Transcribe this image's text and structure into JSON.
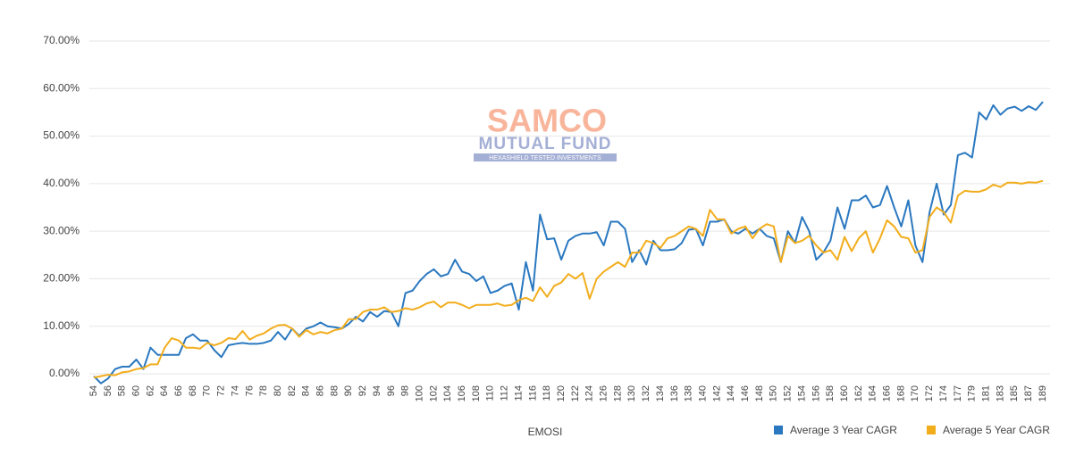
{
  "chart_data": {
    "type": "line",
    "watermark": {
      "brand": "SAMCO",
      "subtitle": "MUTUAL FUND",
      "tagline": "HEXASHIELD TESTED INVESTMENTS"
    },
    "x_label": "EMOSI",
    "categories": [
      "54",
      null,
      "56",
      null,
      "58",
      null,
      "60",
      null,
      "62",
      null,
      "64",
      null,
      "66",
      null,
      "68",
      null,
      "70",
      null,
      "72",
      null,
      "74",
      null,
      "76",
      null,
      "78",
      null,
      "80",
      null,
      "82",
      null,
      "84",
      null,
      "86",
      null,
      "88",
      null,
      "90",
      null,
      "92",
      null,
      "94",
      null,
      "96",
      null,
      "98",
      null,
      "100",
      null,
      "102",
      null,
      "104",
      null,
      "106",
      null,
      "108",
      null,
      "110",
      null,
      "112",
      null,
      "114",
      null,
      "116",
      null,
      "118",
      null,
      "120",
      null,
      "122",
      null,
      "124",
      null,
      "126",
      null,
      "128",
      null,
      "130",
      null,
      "132",
      null,
      "134",
      null,
      "136",
      null,
      "138",
      null,
      "140",
      null,
      "142",
      null,
      "144",
      null,
      "146",
      null,
      "148",
      null,
      "150",
      null,
      "152",
      null,
      "154",
      null,
      "156",
      null,
      "158",
      null,
      "160",
      null,
      "162",
      null,
      "164",
      null,
      "166",
      null,
      "168",
      null,
      "170",
      null,
      "172",
      null,
      "174",
      null,
      "177",
      null,
      "179",
      null,
      "181",
      null,
      "183",
      null,
      "185",
      null,
      "187",
      null,
      "189"
    ],
    "series": [
      {
        "name": "Average 3 Year CAGR",
        "color": "#2a78c0",
        "values": [
          -0.5,
          -2,
          -1,
          1,
          1.5,
          1.5,
          3,
          1,
          5.5,
          4,
          4,
          4,
          4,
          7.5,
          8.3,
          7,
          7,
          5,
          3.5,
          6,
          6.3,
          6.5,
          6.3,
          6.3,
          6.5,
          7,
          8.8,
          7.2,
          9.5,
          8,
          9.5,
          10,
          10.8,
          10,
          9.8,
          9.5,
          10.5,
          12,
          11,
          13,
          12,
          13.2,
          13,
          10,
          17,
          17.5,
          19.5,
          21,
          22,
          20.5,
          21,
          24,
          21.5,
          21,
          19.5,
          20.5,
          17,
          17.5,
          18.5,
          19,
          13.5,
          23.5,
          17.5,
          33.5,
          28.3,
          28.5,
          24,
          28,
          29,
          29.5,
          29.5,
          29.8,
          27,
          32,
          32,
          30.5,
          23.5,
          26,
          23,
          28,
          26,
          26,
          26.2,
          27.5,
          30.3,
          30.5,
          27,
          32,
          32,
          32.5,
          30,
          29.5,
          30.5,
          29.5,
          30.5,
          29,
          28.5,
          23.5,
          30,
          27.5,
          33,
          30,
          24,
          25.5,
          28,
          35,
          30.5,
          36.5,
          36.5,
          37.5,
          35,
          35.5,
          39.5,
          35,
          31,
          36.5,
          27,
          23.5,
          34,
          40,
          33.5,
          35.5,
          46,
          46.5,
          45.5,
          55,
          53.5,
          56.5,
          54.5,
          55.8,
          56.2,
          55.3,
          56.3,
          55.5,
          57.2
        ]
      },
      {
        "name": "Average 5 Year CAGR",
        "color": "#f2ad1c",
        "values": [
          -0.8,
          -0.5,
          -0.2,
          -0.3,
          0.3,
          0.5,
          1,
          1.2,
          2,
          2,
          5.5,
          7.5,
          7,
          5.5,
          5.5,
          5.3,
          6.5,
          6,
          6.5,
          7.5,
          7.3,
          9,
          7.2,
          8,
          8.5,
          9.5,
          10.2,
          10.3,
          9.5,
          7.8,
          9.2,
          8.3,
          8.8,
          8.5,
          9.2,
          9.5,
          11.5,
          11.5,
          13,
          13.5,
          13.5,
          14,
          13,
          13.2,
          13.8,
          13.5,
          14,
          14.8,
          15.2,
          14,
          15,
          15,
          14.5,
          13.8,
          14.5,
          14.5,
          14.5,
          14.8,
          14.3,
          14.5,
          15.5,
          16,
          15.3,
          18.2,
          16.2,
          18.5,
          19.2,
          21,
          20,
          21.2,
          15.8,
          20,
          21.5,
          22.5,
          23.5,
          22.5,
          25.5,
          25.5,
          28,
          27.5,
          26.5,
          28.5,
          29,
          30,
          31,
          30.5,
          29,
          34.5,
          32.5,
          32.5,
          29.5,
          30.5,
          31,
          28.5,
          30.5,
          31.5,
          31,
          23.5,
          29,
          27.5,
          28,
          29,
          27,
          25.5,
          26,
          24,
          28.8,
          25.8,
          28.5,
          30,
          25.5,
          28.5,
          32.3,
          31,
          28.8,
          28.5,
          25.5,
          26,
          33,
          35,
          34,
          31.8,
          37.5,
          38.5,
          38.3,
          38.3,
          38.8,
          39.8,
          39.3,
          40.2,
          40.2,
          40,
          40.3,
          40.2,
          40.6
        ]
      }
    ],
    "ylim": [
      0,
      70
    ],
    "yticks": [
      {
        "value": 0,
        "label": "0.00%"
      },
      {
        "value": 10,
        "label": "10.00%"
      },
      {
        "value": 20,
        "label": "20.00%"
      },
      {
        "value": 30,
        "label": "30.00%"
      },
      {
        "value": 40,
        "label": "40.00%"
      },
      {
        "value": 50,
        "label": "50.00%"
      },
      {
        "value": 60,
        "label": "60.00%"
      },
      {
        "value": 70,
        "label": "70.00%"
      }
    ],
    "grid": true,
    "legend": "bottom-right"
  }
}
